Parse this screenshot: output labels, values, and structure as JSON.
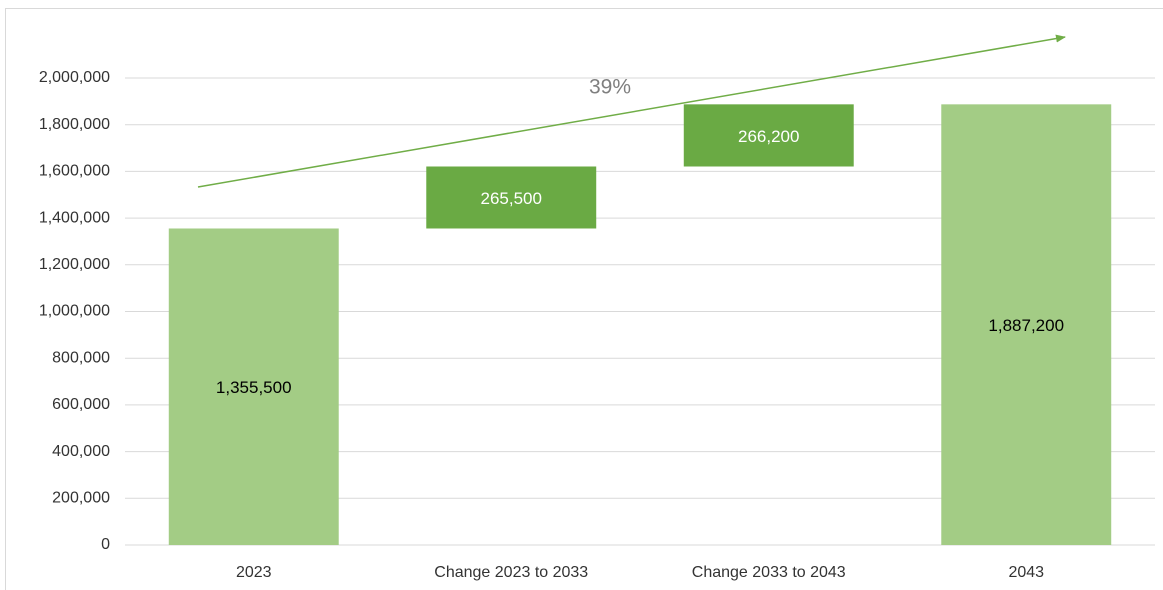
{
  "chart_data": {
    "type": "waterfall",
    "categories": [
      "2023",
      "Change 2023 to 2033",
      "Change 2033 to 2043",
      "2043"
    ],
    "values": [
      1355500,
      265500,
      266200,
      1887200
    ],
    "value_labels": [
      "1,355,500",
      "265,500",
      "266,200",
      "1,887,200"
    ],
    "measure": [
      "absolute",
      "relative",
      "relative",
      "total"
    ],
    "colors": {
      "absolute": "#a3cc85",
      "relative": "#6aaa44",
      "total": "#a3cc85"
    },
    "annotation": "39%",
    "ylim": [
      0,
      2000000
    ],
    "yticks": [
      0,
      {
        "value": 200000,
        "label": "200,000"
      },
      {
        "value": 400000,
        "label": "400,000"
      },
      {
        "value": 600000,
        "label": "600,000"
      },
      {
        "value": 800000,
        "label": "800,000"
      },
      {
        "value": 1000000,
        "label": "1,000,000"
      },
      {
        "value": 1200000,
        "label": "1,200,000"
      },
      {
        "value": 1400000,
        "label": "1,400,000"
      },
      {
        "value": 1600000,
        "label": "1,600,000"
      },
      {
        "value": 1800000,
        "label": "1,800,000"
      },
      {
        "value": 2000000,
        "label": "2,000,000"
      }
    ],
    "grid": true
  }
}
